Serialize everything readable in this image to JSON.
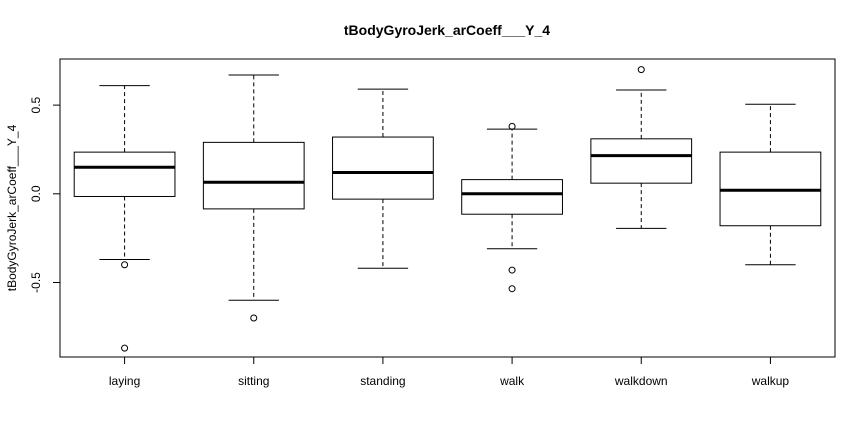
{
  "chart_data": {
    "type": "boxplot",
    "title": "tBodyGyroJerk_arCoeff___Y_4",
    "xlabel": "",
    "ylabel": "tBodyGyroJerk_arCoeff___Y_4",
    "ylim": [
      -0.92,
      0.76
    ],
    "yticks": [
      -0.5,
      0.0,
      0.5
    ],
    "ytick_labels": [
      "-0.5",
      "0.0",
      "0.5"
    ],
    "grid": false,
    "categories": [
      "laying",
      "sitting",
      "standing",
      "walk",
      "walkdown",
      "walkup"
    ],
    "boxes": [
      {
        "name": "laying",
        "whisker_low": -0.37,
        "q1": -0.015,
        "median": 0.15,
        "q3": 0.235,
        "whisker_high": 0.61,
        "outliers": [
          -0.4,
          -0.87
        ]
      },
      {
        "name": "sitting",
        "whisker_low": -0.6,
        "q1": -0.085,
        "median": 0.065,
        "q3": 0.29,
        "whisker_high": 0.67,
        "outliers": [
          -0.7
        ]
      },
      {
        "name": "standing",
        "whisker_low": -0.42,
        "q1": -0.03,
        "median": 0.12,
        "q3": 0.32,
        "whisker_high": 0.59,
        "outliers": []
      },
      {
        "name": "walk",
        "whisker_low": -0.31,
        "q1": -0.115,
        "median": 0.0,
        "q3": 0.08,
        "whisker_high": 0.365,
        "outliers": [
          0.38,
          -0.43,
          -0.535
        ]
      },
      {
        "name": "walkdown",
        "whisker_low": -0.195,
        "q1": 0.06,
        "median": 0.215,
        "q3": 0.31,
        "whisker_high": 0.585,
        "outliers": [
          0.7
        ]
      },
      {
        "name": "walkup",
        "whisker_low": -0.4,
        "q1": -0.18,
        "median": 0.02,
        "q3": 0.235,
        "whisker_high": 0.505,
        "outliers": []
      }
    ]
  }
}
